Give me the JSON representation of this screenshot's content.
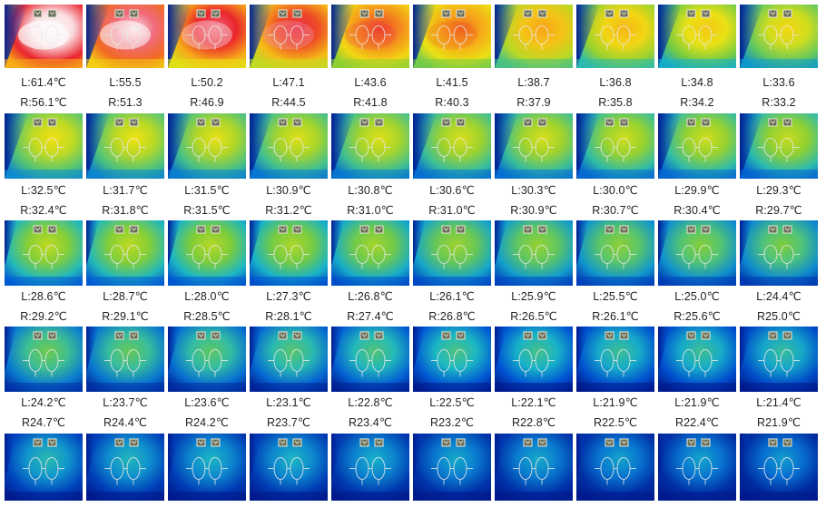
{
  "readings": [
    {
      "left": "L:61.4℃",
      "right": "R:56.1℃",
      "intensity": 1.0
    },
    {
      "left": "L:55.5",
      "right": "R:51.3",
      "intensity": 0.93
    },
    {
      "left": "L:50.2",
      "right": "R:46.9",
      "intensity": 0.86
    },
    {
      "left": "L:47.1",
      "right": "R:44.5",
      "intensity": 0.82
    },
    {
      "left": "L:43.6",
      "right": "R:41.8",
      "intensity": 0.76
    },
    {
      "left": "L:41.5",
      "right": "R:40.3",
      "intensity": 0.72
    },
    {
      "left": "L:38.7",
      "right": "R:37.9",
      "intensity": 0.66
    },
    {
      "left": "L:36.8",
      "right": "R:35.8",
      "intensity": 0.62
    },
    {
      "left": "L:34.8",
      "right": "R:34.2",
      "intensity": 0.58
    },
    {
      "left": "L:33.6",
      "right": "R:33.2",
      "intensity": 0.55
    },
    {
      "left": "L:32.5℃",
      "right": "R:32.4℃",
      "intensity": 0.53
    },
    {
      "left": "L:31.7℃",
      "right": "R:31.8℃",
      "intensity": 0.52
    },
    {
      "left": "L:31.5℃",
      "right": "R:31.5℃",
      "intensity": 0.51
    },
    {
      "left": "L:30.9℃",
      "right": "R:31.2℃",
      "intensity": 0.5
    },
    {
      "left": "L:30.8℃",
      "right": "R:31.0℃",
      "intensity": 0.5
    },
    {
      "left": "L:30.6℃",
      "right": "R:31.0℃",
      "intensity": 0.49
    },
    {
      "left": "L:30.3℃",
      "right": "R:30.9℃",
      "intensity": 0.49
    },
    {
      "left": "L:30.0℃",
      "right": "R:30.7℃",
      "intensity": 0.48
    },
    {
      "left": "L:29.9℃",
      "right": "R:30.4℃",
      "intensity": 0.48
    },
    {
      "left": "L:29.3℃",
      "right": "R:29.7℃",
      "intensity": 0.47
    },
    {
      "left": "L:28.6℃",
      "right": "R:29.2℃",
      "intensity": 0.46
    },
    {
      "left": "L:28.7℃",
      "right": "R:29.1℃",
      "intensity": 0.46
    },
    {
      "left": "L:28.0℃",
      "right": "R:28.5℃",
      "intensity": 0.45
    },
    {
      "left": "L:27.3℃",
      "right": "R:28.1℃",
      "intensity": 0.44
    },
    {
      "left": "L:26.8℃",
      "right": "R:27.4℃",
      "intensity": 0.43
    },
    {
      "left": "L:26.1℃",
      "right": "R:26.8℃",
      "intensity": 0.42
    },
    {
      "left": "L:25.9℃",
      "right": "R:26.5℃",
      "intensity": 0.41
    },
    {
      "left": "L:25.5℃",
      "right": "R:26.1℃",
      "intensity": 0.4
    },
    {
      "left": "L:25.0℃",
      "right": "R:25.6℃",
      "intensity": 0.39
    },
    {
      "left": "L:24.4℃",
      "right": "R25.0℃",
      "intensity": 0.38
    },
    {
      "left": "L:24.2℃",
      "right": "R24.7℃",
      "intensity": 0.36
    },
    {
      "left": "L:23.7℃",
      "right": "R24.4℃",
      "intensity": 0.35
    },
    {
      "left": "L:23.6℃",
      "right": "R24.2℃",
      "intensity": 0.34
    },
    {
      "left": "L:23.1℃",
      "right": "R23.7℃",
      "intensity": 0.33
    },
    {
      "left": "L:22.8℃",
      "right": "R23.4℃",
      "intensity": 0.32
    },
    {
      "left": "L:22.5℃",
      "right": "R23.2℃",
      "intensity": 0.31
    },
    {
      "left": "L:22.1℃",
      "right": "R22.8℃",
      "intensity": 0.3
    },
    {
      "left": "L:21.9℃",
      "right": "R22.5℃",
      "intensity": 0.29
    },
    {
      "left": "L:21.9℃",
      "right": "R22.4℃",
      "intensity": 0.29
    },
    {
      "left": "L:21.4℃",
      "right": "R21.9℃",
      "intensity": 0.28
    },
    {
      "intensity": 0.26
    },
    {
      "intensity": 0.25
    },
    {
      "intensity": 0.24
    },
    {
      "intensity": 0.24
    },
    {
      "intensity": 0.23
    },
    {
      "intensity": 0.22
    },
    {
      "intensity": 0.22
    },
    {
      "intensity": 0.21
    },
    {
      "intensity": 0.21
    },
    {
      "intensity": 0.2
    }
  ],
  "palette": {
    "deep_blue": "#001a8c",
    "blue": "#0055d4",
    "cyan": "#19b6c8",
    "green": "#7ccd3a",
    "yellow": "#f2e311",
    "orange": "#f7a21a",
    "red": "#e8132e",
    "hot": "#fdfdfd"
  }
}
